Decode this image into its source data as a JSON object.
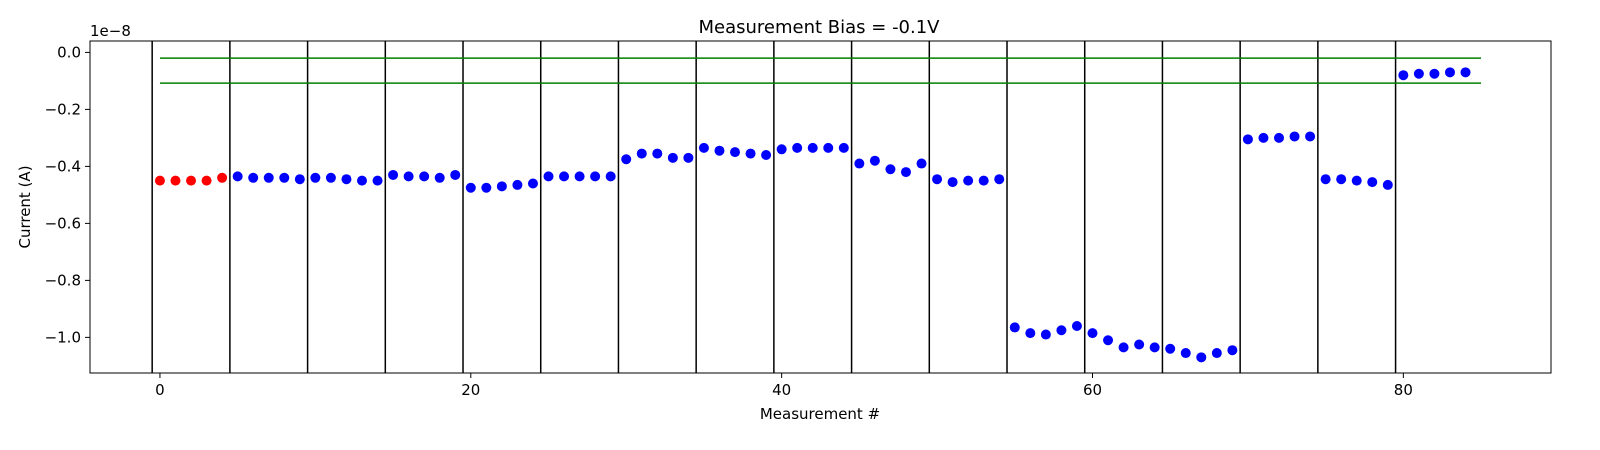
{
  "chart_data": {
    "type": "scatter",
    "title": "Measurement Bias = -0.1V",
    "xlabel": "Measurement #",
    "ylabel": "Current (A)",
    "y_offset_text": "1e−8",
    "xlim": [
      -4.5,
      89.5
    ],
    "ylim": [
      -1.125,
      0.04
    ],
    "x_ticks": [
      0,
      20,
      40,
      60,
      80
    ],
    "x_tick_labels": [
      "0",
      "20",
      "40",
      "60",
      "80"
    ],
    "y_ticks": [
      0.0,
      -0.2,
      -0.4,
      -0.6,
      -0.8,
      -1.0
    ],
    "y_tick_labels": [
      "0.0",
      "−0.2",
      "−0.4",
      "−0.6",
      "−0.8",
      "−1.0"
    ],
    "grid": false,
    "scale_factor": 1e-08,
    "colors": {
      "highlight": "#ff0000",
      "main": "#0000ff",
      "limit": "#008000",
      "divider": "#000000"
    },
    "series": [
      {
        "color": "#ff0000",
        "x": [
          0,
          1,
          2,
          3,
          4
        ],
        "y": [
          -0.45,
          -0.45,
          -0.45,
          -0.45,
          -0.44
        ]
      },
      {
        "color": "#0000ff",
        "x": [
          5,
          6,
          7,
          8,
          9,
          10,
          11,
          12,
          13,
          14,
          15,
          16,
          17,
          18,
          19,
          20,
          21,
          22,
          23,
          24,
          25,
          26,
          27,
          28,
          29,
          30,
          31,
          32,
          33,
          34,
          35,
          36,
          37,
          38,
          39,
          40,
          41,
          42,
          43,
          44,
          45,
          46,
          47,
          48,
          49,
          50,
          51,
          52,
          53,
          54,
          55,
          56,
          57,
          58,
          59,
          60,
          61,
          62,
          63,
          64,
          65,
          66,
          67,
          68,
          69,
          70,
          71,
          72,
          73,
          74,
          75,
          76,
          77,
          78,
          79,
          80,
          81,
          82,
          83,
          84
        ],
        "y": [
          -0.435,
          -0.44,
          -0.44,
          -0.44,
          -0.445,
          -0.44,
          -0.44,
          -0.445,
          -0.45,
          -0.45,
          -0.43,
          -0.435,
          -0.435,
          -0.44,
          -0.43,
          -0.475,
          -0.475,
          -0.47,
          -0.465,
          -0.46,
          -0.435,
          -0.435,
          -0.435,
          -0.435,
          -0.435,
          -0.375,
          -0.355,
          -0.355,
          -0.37,
          -0.37,
          -0.335,
          -0.345,
          -0.35,
          -0.355,
          -0.36,
          -0.34,
          -0.335,
          -0.335,
          -0.335,
          -0.335,
          -0.39,
          -0.38,
          -0.41,
          -0.42,
          -0.39,
          -0.445,
          -0.455,
          -0.45,
          -0.45,
          -0.445,
          -0.965,
          -0.985,
          -0.99,
          -0.975,
          -0.96,
          -0.985,
          -1.01,
          -1.035,
          -1.025,
          -1.035,
          -1.04,
          -1.055,
          -1.07,
          -1.055,
          -1.045,
          -0.305,
          -0.3,
          -0.3,
          -0.295,
          -0.295,
          -0.445,
          -0.445,
          -0.45,
          -0.455,
          -0.465,
          -0.08,
          -0.075,
          -0.075,
          -0.07,
          -0.07
        ]
      }
    ],
    "vertical_lines_x": [
      -0.5,
      4.5,
      9.5,
      14.5,
      19.5,
      24.5,
      29.5,
      34.5,
      39.5,
      44.5,
      49.5,
      54.5,
      59.5,
      64.5,
      69.5,
      74.5,
      79.5
    ],
    "horizontal_lines": [
      {
        "y": -0.02,
        "x_range": [
          0,
          85
        ]
      },
      {
        "y": -0.108,
        "x_range": [
          0,
          85
        ]
      }
    ]
  }
}
